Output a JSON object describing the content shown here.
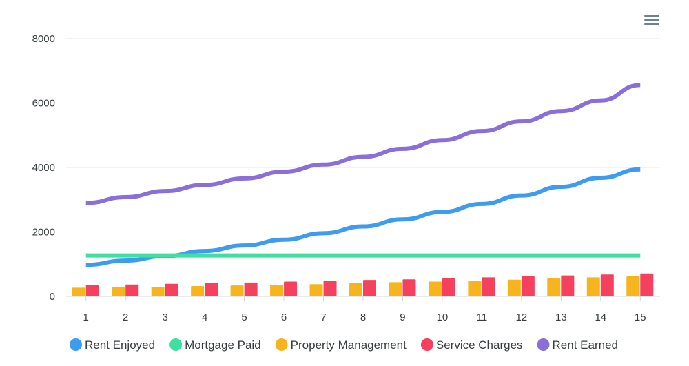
{
  "toolbar": {
    "menu_icon": "hamburger-menu-icon"
  },
  "chart_data": {
    "type": "line",
    "categories": [
      "1",
      "2",
      "3",
      "4",
      "5",
      "6",
      "7",
      "8",
      "9",
      "10",
      "11",
      "12",
      "13",
      "14",
      "15"
    ],
    "ylim": [
      0,
      8000
    ],
    "yticks": [
      0,
      2000,
      4000,
      6000,
      8000
    ],
    "grid": true,
    "legend_position": "bottom",
    "series": [
      {
        "name": "Rent Enjoyed",
        "kind": "line",
        "color": "#3d9cf0",
        "values": [
          980,
          1110,
          1250,
          1410,
          1580,
          1760,
          1960,
          2170,
          2390,
          2620,
          2870,
          3130,
          3400,
          3680,
          3940
        ]
      },
      {
        "name": "Mortgage Paid",
        "kind": "line",
        "color": "#3ee0a0",
        "values": [
          1270,
          1270,
          1270,
          1270,
          1270,
          1270,
          1270,
          1270,
          1270,
          1270,
          1270,
          1270,
          1270,
          1270,
          1270
        ]
      },
      {
        "name": "Property Management",
        "kind": "bar",
        "color": "#f8b41c",
        "values": [
          270,
          290,
          300,
          320,
          340,
          360,
          380,
          410,
          440,
          460,
          490,
          520,
          560,
          590,
          620
        ]
      },
      {
        "name": "Service Charges",
        "kind": "bar",
        "color": "#f5405e",
        "values": [
          350,
          370,
          390,
          410,
          430,
          460,
          480,
          510,
          530,
          560,
          590,
          620,
          650,
          680,
          710
        ]
      },
      {
        "name": "Rent Earned",
        "kind": "line",
        "color": "#8a6fd8",
        "values": [
          2900,
          3080,
          3270,
          3460,
          3660,
          3870,
          4090,
          4330,
          4580,
          4850,
          5130,
          5430,
          5750,
          6080,
          6560
        ]
      }
    ]
  }
}
